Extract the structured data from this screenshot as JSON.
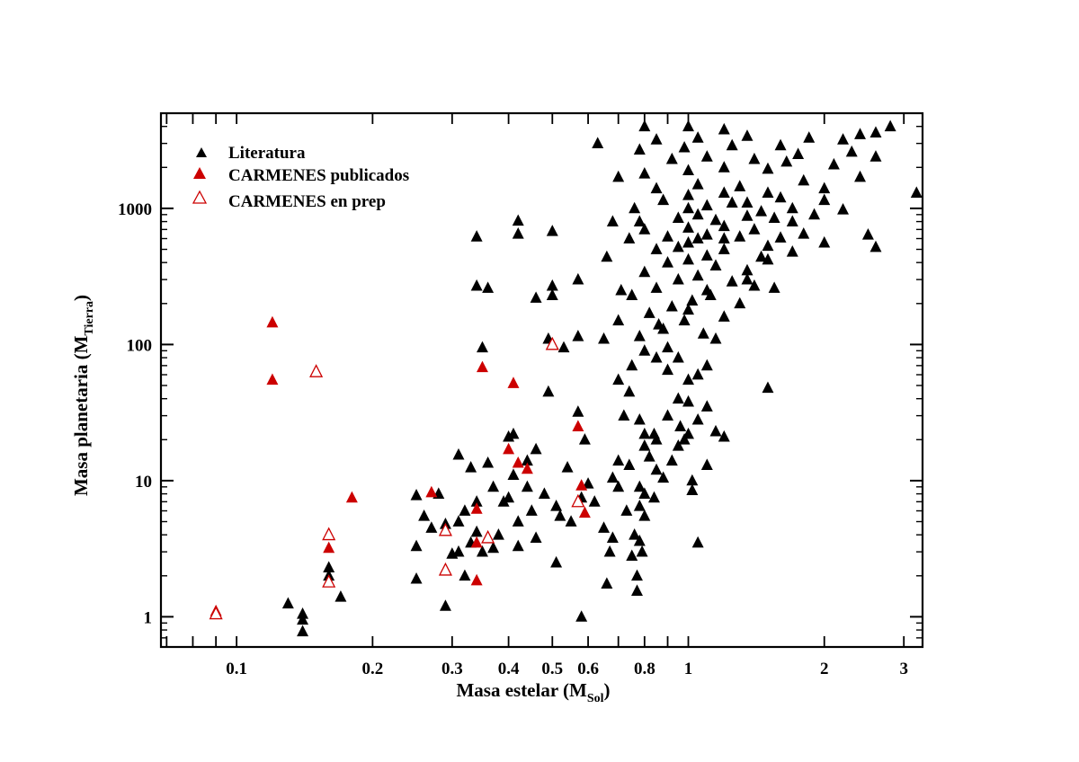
{
  "chart_data": {
    "type": "scatter",
    "xscale": "log",
    "yscale": "log",
    "xlim": [
      0.068,
      3.3
    ],
    "ylim": [
      0.6,
      5000
    ],
    "xlabel": {
      "main": "Masa estelar (M",
      "sub": "Sol",
      "close": ")"
    },
    "ylabel": {
      "main": "Masa planetaria (M",
      "sub": "Tierra",
      "close": ")"
    },
    "xticks": [
      {
        "value": 0.1,
        "label": "0.1"
      },
      {
        "value": 0.2,
        "label": "0.2"
      },
      {
        "value": 0.3,
        "label": "0.3"
      },
      {
        "value": 0.4,
        "label": "0.4"
      },
      {
        "value": 0.5,
        "label": "0.5"
      },
      {
        "value": 0.6,
        "label": "0.6"
      },
      {
        "value": 0.8,
        "label": "0.8"
      },
      {
        "value": 1,
        "label": "1"
      },
      {
        "value": 2,
        "label": "2"
      },
      {
        "value": 3,
        "label": "3"
      }
    ],
    "xticks_unlabeled": [
      0.07,
      0.08,
      0.09,
      0.7,
      0.9
    ],
    "yticks": [
      {
        "value": 1,
        "label": "1"
      },
      {
        "value": 10,
        "label": "10"
      },
      {
        "value": 100,
        "label": "100"
      },
      {
        "value": 1000,
        "label": "1000"
      }
    ],
    "legend": {
      "position": "top-left"
    },
    "series": [
      {
        "name": "Literatura",
        "marker": "triangle-filled",
        "color": "#000000",
        "points": [
          [
            0.13,
            1.25
          ],
          [
            0.14,
            1.05
          ],
          [
            0.14,
            0.95
          ],
          [
            0.14,
            0.78
          ],
          [
            0.16,
            2.3
          ],
          [
            0.16,
            2.0
          ],
          [
            0.17,
            1.4
          ],
          [
            0.25,
            7.8
          ],
          [
            0.25,
            3.3
          ],
          [
            0.25,
            1.9
          ],
          [
            0.26,
            5.5
          ],
          [
            0.27,
            4.5
          ],
          [
            0.28,
            8.0
          ],
          [
            0.29,
            1.2
          ],
          [
            0.29,
            4.8
          ],
          [
            0.3,
            2.9
          ],
          [
            0.31,
            15.5
          ],
          [
            0.31,
            5.0
          ],
          [
            0.31,
            3.0
          ],
          [
            0.32,
            2.0
          ],
          [
            0.32,
            6.0
          ],
          [
            0.33,
            3.5
          ],
          [
            0.33,
            12.5
          ],
          [
            0.34,
            7.0
          ],
          [
            0.34,
            4.2
          ],
          [
            0.34,
            620
          ],
          [
            0.34,
            270
          ],
          [
            0.35,
            95
          ],
          [
            0.35,
            3.0
          ],
          [
            0.36,
            13.5
          ],
          [
            0.36,
            260
          ],
          [
            0.37,
            9.0
          ],
          [
            0.37,
            3.2
          ],
          [
            0.38,
            4.0
          ],
          [
            0.39,
            7.0
          ],
          [
            0.4,
            21
          ],
          [
            0.4,
            7.5
          ],
          [
            0.41,
            22
          ],
          [
            0.41,
            11
          ],
          [
            0.42,
            5.0
          ],
          [
            0.42,
            810
          ],
          [
            0.42,
            650
          ],
          [
            0.42,
            3.3
          ],
          [
            0.44,
            14
          ],
          [
            0.44,
            9.0
          ],
          [
            0.45,
            6.0
          ],
          [
            0.46,
            17
          ],
          [
            0.46,
            220
          ],
          [
            0.46,
            3.8
          ],
          [
            0.48,
            8.0
          ],
          [
            0.49,
            45
          ],
          [
            0.49,
            110
          ],
          [
            0.5,
            680
          ],
          [
            0.5,
            270
          ],
          [
            0.5,
            230
          ],
          [
            0.51,
            2.5
          ],
          [
            0.51,
            6.5
          ],
          [
            0.52,
            5.5
          ],
          [
            0.53,
            95
          ],
          [
            0.54,
            12.5
          ],
          [
            0.55,
            5.0
          ],
          [
            0.57,
            300
          ],
          [
            0.57,
            115
          ],
          [
            0.57,
            32
          ],
          [
            0.58,
            1.0
          ],
          [
            0.58,
            7.5
          ],
          [
            0.59,
            20
          ],
          [
            0.6,
            9.5
          ],
          [
            0.62,
            7.0
          ],
          [
            0.63,
            3000
          ],
          [
            0.65,
            4.5
          ],
          [
            0.66,
            1.75
          ],
          [
            0.67,
            3.0
          ],
          [
            0.68,
            10.5
          ],
          [
            0.68,
            3.8
          ],
          [
            0.7,
            9.0
          ],
          [
            0.7,
            14
          ],
          [
            0.71,
            250
          ],
          [
            0.73,
            6.0
          ],
          [
            0.74,
            13
          ],
          [
            0.75,
            2.8
          ],
          [
            0.76,
            4.0
          ],
          [
            0.77,
            2.0
          ],
          [
            0.77,
            1.55
          ],
          [
            0.78,
            3.6
          ],
          [
            0.78,
            6.5
          ],
          [
            0.78,
            9.0
          ],
          [
            0.79,
            3.0
          ],
          [
            0.8,
            5.5
          ],
          [
            0.8,
            18
          ],
          [
            0.8,
            22
          ],
          [
            0.82,
            15
          ],
          [
            0.85,
            12
          ],
          [
            0.85,
            20
          ],
          [
            0.88,
            10.5
          ],
          [
            0.9,
            30
          ],
          [
            0.92,
            14
          ],
          [
            0.95,
            18
          ],
          [
            0.98,
            20
          ],
          [
            1.0,
            22
          ],
          [
            1.02,
            10
          ],
          [
            1.05,
            3.5
          ],
          [
            1.1,
            13
          ],
          [
            1.1,
            35
          ],
          [
            1.15,
            23
          ],
          [
            1.2,
            21
          ],
          [
            1.5,
            48
          ],
          [
            0.95,
            40
          ],
          [
            1.05,
            60
          ],
          [
            1.0,
            55
          ],
          [
            0.9,
            65
          ],
          [
            0.85,
            80
          ],
          [
            0.8,
            90
          ],
          [
            1.1,
            70
          ],
          [
            0.75,
            70
          ],
          [
            1.15,
            110
          ],
          [
            0.78,
            115
          ],
          [
            0.88,
            130
          ],
          [
            0.98,
            150
          ],
          [
            1.08,
            120
          ],
          [
            0.7,
            150
          ],
          [
            0.82,
            170
          ],
          [
            1.2,
            160
          ],
          [
            0.92,
            190
          ],
          [
            1.02,
            210
          ],
          [
            1.12,
            230
          ],
          [
            0.75,
            230
          ],
          [
            0.85,
            260
          ],
          [
            1.3,
            200
          ],
          [
            1.4,
            270
          ],
          [
            0.95,
            300
          ],
          [
            1.05,
            320
          ],
          [
            1.25,
            290
          ],
          [
            0.8,
            340
          ],
          [
            1.15,
            380
          ],
          [
            1.35,
            350
          ],
          [
            0.9,
            400
          ],
          [
            1.0,
            420
          ],
          [
            1.1,
            450
          ],
          [
            1.45,
            440
          ],
          [
            0.85,
            500
          ],
          [
            0.95,
            520
          ],
          [
            1.2,
            500
          ],
          [
            1.5,
            530
          ],
          [
            1.7,
            480
          ],
          [
            1.0,
            560
          ],
          [
            1.05,
            600
          ],
          [
            1.1,
            640
          ],
          [
            0.9,
            620
          ],
          [
            1.3,
            620
          ],
          [
            1.6,
            610
          ],
          [
            2.0,
            560
          ],
          [
            0.8,
            700
          ],
          [
            1.0,
            720
          ],
          [
            1.2,
            740
          ],
          [
            1.4,
            700
          ],
          [
            1.8,
            650
          ],
          [
            2.5,
            640
          ],
          [
            0.95,
            850
          ],
          [
            1.05,
            900
          ],
          [
            1.15,
            820
          ],
          [
            1.35,
            880
          ],
          [
            1.55,
            850
          ],
          [
            1.9,
            900
          ],
          [
            0.78,
            800
          ],
          [
            1.0,
            1000
          ],
          [
            1.1,
            1050
          ],
          [
            1.25,
            1100
          ],
          [
            1.45,
            950
          ],
          [
            1.7,
            1000
          ],
          [
            2.2,
            980
          ],
          [
            0.88,
            1150
          ],
          [
            1.0,
            1250
          ],
          [
            1.2,
            1300
          ],
          [
            1.6,
            1200
          ],
          [
            2.0,
            1150
          ],
          [
            0.85,
            1400
          ],
          [
            1.05,
            1500
          ],
          [
            1.3,
            1450
          ],
          [
            1.8,
            1600
          ],
          [
            2.4,
            1700
          ],
          [
            0.8,
            1800
          ],
          [
            1.0,
            1900
          ],
          [
            1.2,
            2000
          ],
          [
            1.5,
            1950
          ],
          [
            2.1,
            2100
          ],
          [
            0.92,
            2300
          ],
          [
            1.1,
            2400
          ],
          [
            1.4,
            2300
          ],
          [
            1.75,
            2500
          ],
          [
            0.78,
            2700
          ],
          [
            0.98,
            2800
          ],
          [
            1.25,
            2900
          ],
          [
            1.6,
            2900
          ],
          [
            2.6,
            2400
          ],
          [
            0.85,
            3200
          ],
          [
            1.05,
            3300
          ],
          [
            1.35,
            3400
          ],
          [
            1.85,
            3300
          ],
          [
            2.4,
            3500
          ],
          [
            0.8,
            4000
          ],
          [
            1.0,
            4000
          ],
          [
            1.2,
            3800
          ],
          [
            2.8,
            4000
          ],
          [
            3.2,
            1300
          ],
          [
            2.6,
            520
          ],
          [
            0.7,
            1700
          ],
          [
            0.68,
            800
          ],
          [
            0.66,
            440
          ],
          [
            0.65,
            110
          ],
          [
            0.7,
            55
          ],
          [
            0.74,
            45
          ],
          [
            0.72,
            30
          ],
          [
            0.76,
            1000
          ],
          [
            0.74,
            600
          ],
          [
            0.86,
            140
          ],
          [
            0.95,
            80
          ],
          [
            1.1,
            250
          ],
          [
            1.2,
            600
          ],
          [
            1.35,
            1100
          ],
          [
            1.5,
            1300
          ],
          [
            1.65,
            2200
          ],
          [
            2.2,
            3200
          ],
          [
            2.6,
            3600
          ],
          [
            2.3,
            2600
          ],
          [
            2.0,
            1400
          ],
          [
            1.7,
            800
          ],
          [
            1.5,
            420
          ],
          [
            1.35,
            300
          ],
          [
            1.55,
            260
          ],
          [
            1.0,
            180
          ],
          [
            0.9,
            95
          ],
          [
            1.0,
            38
          ],
          [
            1.05,
            28
          ],
          [
            0.96,
            25
          ],
          [
            0.84,
            22
          ],
          [
            0.78,
            28
          ],
          [
            1.02,
            8.5
          ],
          [
            0.84,
            7.5
          ],
          [
            0.8,
            8.0
          ]
        ]
      },
      {
        "name": "CARMENES publicados",
        "marker": "triangle-filled",
        "color": "#cc0000",
        "points": [
          [
            0.09,
            1.1
          ],
          [
            0.12,
            145
          ],
          [
            0.12,
            55
          ],
          [
            0.16,
            3.2
          ],
          [
            0.18,
            7.5
          ],
          [
            0.27,
            8.2
          ],
          [
            0.34,
            6.2
          ],
          [
            0.34,
            3.5
          ],
          [
            0.34,
            1.85
          ],
          [
            0.35,
            68
          ],
          [
            0.4,
            17
          ],
          [
            0.41,
            52
          ],
          [
            0.42,
            13.5
          ],
          [
            0.44,
            12.2
          ],
          [
            0.57,
            25
          ],
          [
            0.58,
            9.2
          ],
          [
            0.59,
            5.8
          ]
        ]
      },
      {
        "name": "CARMENES en prep",
        "marker": "triangle-open",
        "color": "#cc0000",
        "points": [
          [
            0.09,
            1.05
          ],
          [
            0.15,
            63
          ],
          [
            0.16,
            4.0
          ],
          [
            0.16,
            1.8
          ],
          [
            0.29,
            4.3
          ],
          [
            0.29,
            2.2
          ],
          [
            0.36,
            3.8
          ],
          [
            0.5,
            100
          ],
          [
            0.57,
            7.0
          ]
        ]
      }
    ]
  }
}
